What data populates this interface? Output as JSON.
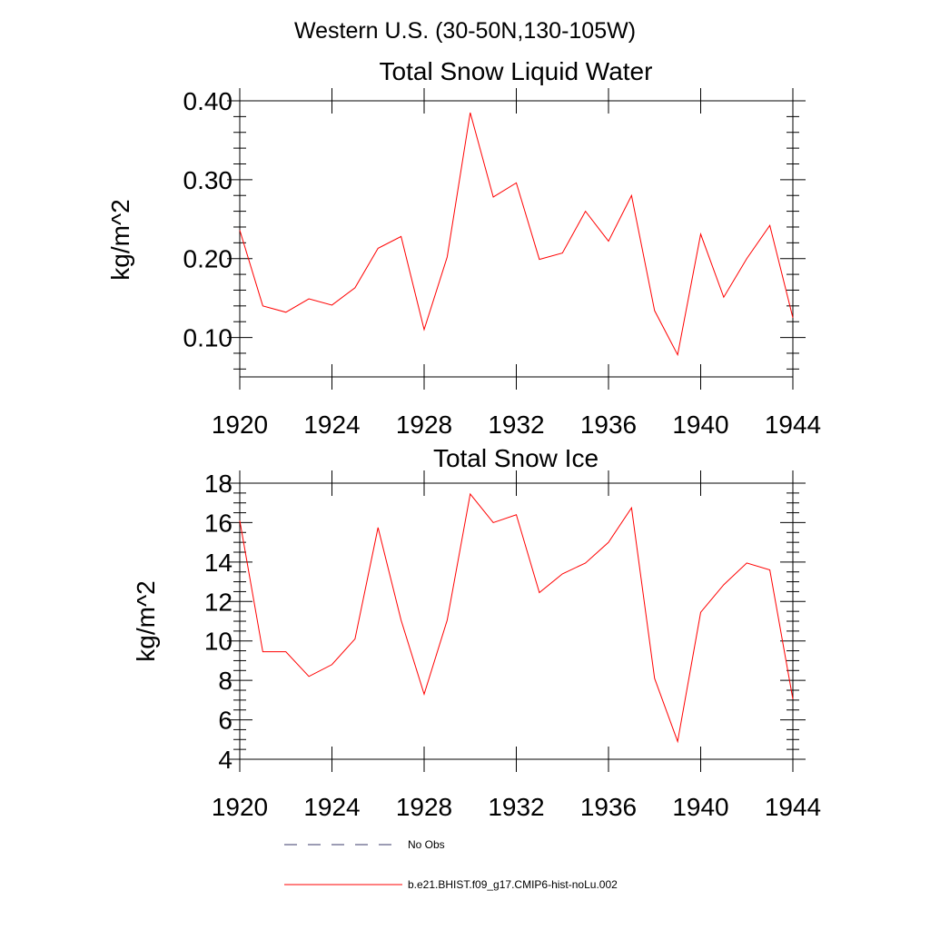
{
  "suptitle": "Western U.S. (30-50N,130-105W)",
  "chart_data": [
    {
      "type": "line",
      "title": "Total Snow Liquid Water",
      "xlabel": "",
      "ylabel": "kg/m^2",
      "xlim": [
        1920,
        1944
      ],
      "ylim": [
        0.05,
        0.4
      ],
      "xticks": [
        1920,
        1924,
        1928,
        1932,
        1936,
        1940,
        1944
      ],
      "xtick_labels": [
        "1920",
        "1924",
        "1928",
        "1932",
        "1936",
        "1940",
        "1944"
      ],
      "yticks": [
        0.1,
        0.2,
        0.3,
        0.4
      ],
      "ytick_labels": [
        "0.10",
        "0.20",
        "0.30",
        "0.40"
      ],
      "grid": false,
      "series": [
        {
          "name": "b.e21.BHIST.f09_g17.CMIP6-hist-noLu.002",
          "color": "#ff0000",
          "x": [
            1920,
            1921,
            1922,
            1923,
            1924,
            1925,
            1926,
            1927,
            1928,
            1929,
            1930,
            1931,
            1932,
            1933,
            1934,
            1935,
            1936,
            1937,
            1938,
            1939,
            1940,
            1941,
            1942,
            1943,
            1944
          ],
          "y": [
            0.236,
            0.14,
            0.132,
            0.149,
            0.141,
            0.163,
            0.213,
            0.228,
            0.11,
            0.202,
            0.385,
            0.278,
            0.296,
            0.199,
            0.207,
            0.26,
            0.222,
            0.28,
            0.134,
            0.078,
            0.231,
            0.151,
            0.2,
            0.242,
            0.125
          ]
        }
      ]
    },
    {
      "type": "line",
      "title": "Total Snow Ice",
      "xlabel": "",
      "ylabel": "kg/m^2",
      "xlim": [
        1920,
        1944
      ],
      "ylim": [
        4,
        18
      ],
      "xticks": [
        1920,
        1924,
        1928,
        1932,
        1936,
        1940,
        1944
      ],
      "xtick_labels": [
        "1920",
        "1924",
        "1928",
        "1932",
        "1936",
        "1940",
        "1944"
      ],
      "yticks": [
        4,
        6,
        8,
        10,
        12,
        14,
        16,
        18
      ],
      "ytick_labels": [
        "4",
        "6",
        "8",
        "10",
        "12",
        "14",
        "16",
        "18"
      ],
      "grid": false,
      "series": [
        {
          "name": "b.e21.BHIST.f09_g17.CMIP6-hist-noLu.002",
          "color": "#ff0000",
          "x": [
            1920,
            1921,
            1922,
            1923,
            1924,
            1925,
            1926,
            1927,
            1928,
            1929,
            1930,
            1931,
            1932,
            1933,
            1934,
            1935,
            1936,
            1937,
            1938,
            1939,
            1940,
            1941,
            1942,
            1943,
            1944
          ],
          "y": [
            16.1,
            9.45,
            9.45,
            8.2,
            8.8,
            10.1,
            15.75,
            11.05,
            7.3,
            11.05,
            17.45,
            16.0,
            16.4,
            12.45,
            13.4,
            13.95,
            15.0,
            16.75,
            8.1,
            4.9,
            11.45,
            12.85,
            13.95,
            13.6,
            7.05
          ]
        }
      ]
    }
  ],
  "legend": {
    "placement": "bottom",
    "entries": [
      {
        "label": "No Obs",
        "color": "#3a3a6a",
        "style": "dashed"
      },
      {
        "label": "b.e21.BHIST.f09_g17.CMIP6-hist-noLu.002",
        "color": "#ff0000",
        "style": "solid"
      }
    ]
  }
}
